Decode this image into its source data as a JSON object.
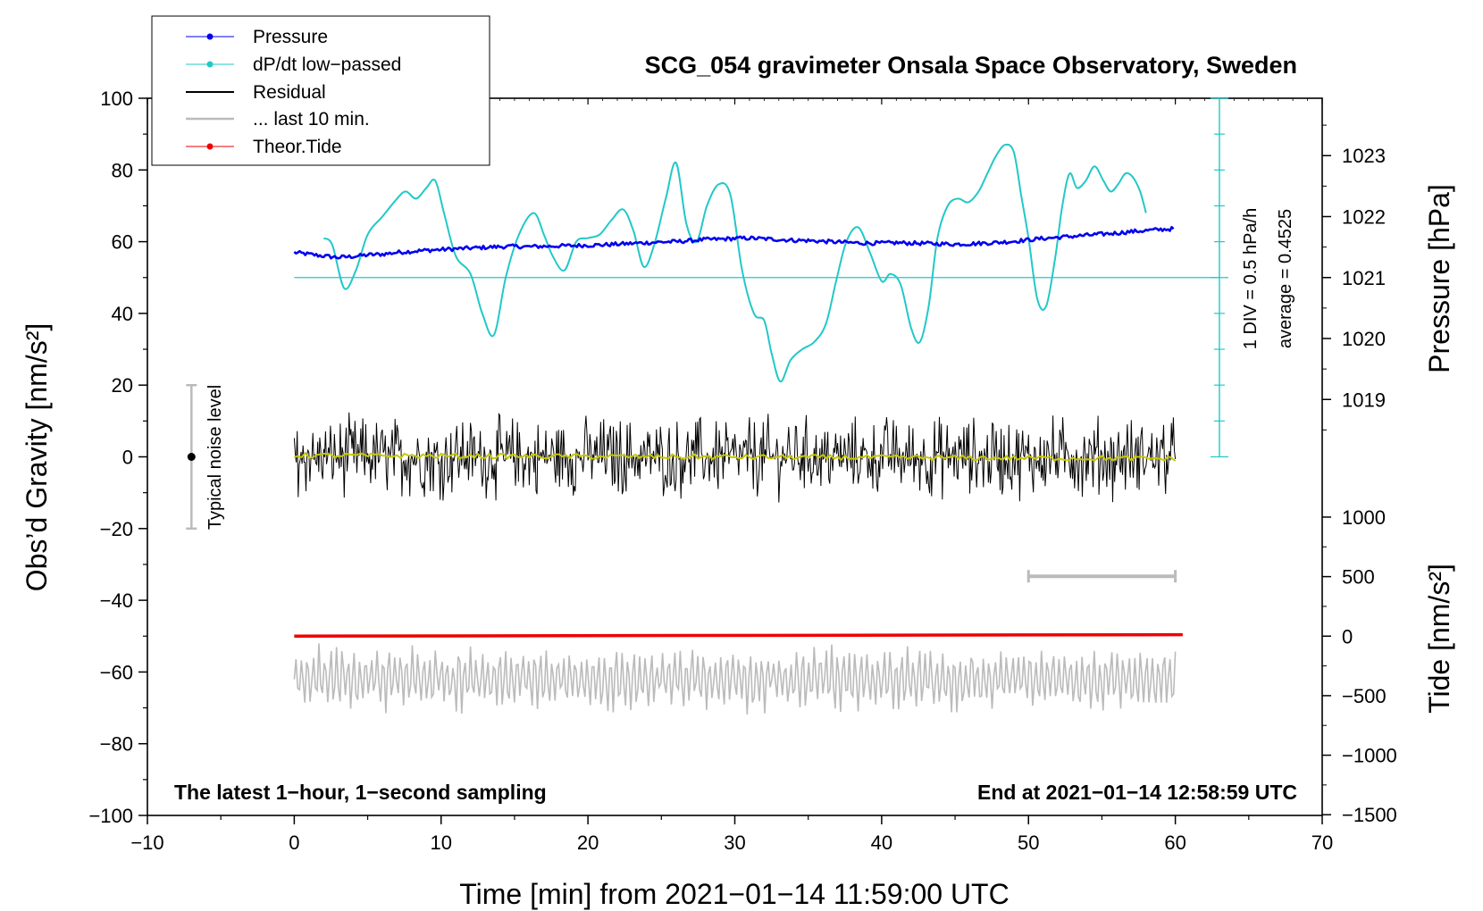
{
  "chart_data": {
    "type": "line",
    "title": "SCG_054 gravimeter Onsala Space Observatory, Sweden",
    "xlabel": "Time [min] from 2021−01−14 11:59:00 UTC",
    "ylabel_left": "Obs’d Gravity [nm/s²]",
    "ylabel_right_top": "Pressure [hPa]",
    "ylabel_right_bottom": "Tide [nm/s²]",
    "xlim": [
      -10,
      70
    ],
    "ylim": [
      -100,
      100
    ],
    "xticks": [
      "−10",
      "0",
      "10",
      "20",
      "30",
      "40",
      "50",
      "60",
      "70"
    ],
    "yticks": [
      "−100",
      "−80",
      "−60",
      "−40",
      "−20",
      "0",
      "20",
      "40",
      "60",
      "80",
      "100"
    ],
    "pressure_ticks": [
      "1019",
      "1020",
      "1021",
      "1022",
      "1023"
    ],
    "tide_ticks": [
      "−1500",
      "−1000",
      "−500",
      "0",
      "500",
      "1000"
    ],
    "legend": [
      "Pressure",
      "dP/dt low−passed",
      "Residual",
      "... last 10 min.",
      "Theor.Tide"
    ],
    "annotations": {
      "noise_label": "Typical noise level",
      "scale_div": "1 DIV = 0.5 hPa/h",
      "scale_avg": "average = 0.4525",
      "bottom_left": "The latest 1−hour, 1−second sampling",
      "bottom_right": "End at 2021−01−14 12:58:59 UTC"
    },
    "colors": {
      "pressure": "#0000ee",
      "dpdt": "#22c8c8",
      "residual": "#000000",
      "last10": "#bbbbbb",
      "tide": "#ee0000",
      "smooth": "#c8c800"
    },
    "series": [
      {
        "name": "Pressure",
        "unit": "gravity-axis units (plotted)",
        "x": [
          0,
          1,
          2,
          3,
          4,
          5,
          6,
          7,
          8,
          9,
          10,
          11,
          12,
          13,
          14,
          15,
          16,
          17,
          18,
          19,
          20,
          21,
          22,
          23,
          24,
          25,
          26,
          27,
          28,
          29,
          30,
          31,
          32,
          33,
          34,
          35,
          36,
          37,
          38,
          39,
          40,
          41,
          42,
          43,
          44,
          45,
          46,
          47,
          48,
          49,
          50,
          51,
          52,
          53,
          54,
          55,
          56,
          57,
          58,
          59,
          60
        ],
        "values": [
          57.0,
          56.5,
          56.0,
          55.6,
          55.9,
          56.3,
          56.5,
          57.0,
          57.3,
          57.6,
          57.8,
          58.0,
          58.2,
          58.4,
          58.6,
          58.7,
          58.6,
          58.7,
          58.8,
          58.9,
          59.0,
          59.1,
          59.3,
          59.5,
          59.7,
          59.9,
          60.0,
          60.3,
          60.6,
          60.7,
          60.9,
          61.0,
          60.8,
          60.6,
          60.4,
          60.3,
          60.1,
          59.9,
          59.7,
          59.6,
          59.6,
          59.7,
          59.6,
          59.5,
          59.4,
          59.3,
          59.4,
          59.6,
          59.8,
          60.1,
          60.5,
          60.9,
          61.2,
          61.5,
          61.8,
          62.1,
          62.4,
          62.8,
          63.1,
          63.4,
          63.6
        ]
      },
      {
        "name": "dP/dt low−passed",
        "unit": "gravity-axis units (plotted)",
        "x": [
          2.0,
          2.6,
          3.4,
          4.2,
          5.0,
          6.0,
          7.0,
          7.6,
          8.3,
          9.0,
          9.6,
          10.2,
          11.0,
          12.0,
          12.8,
          13.6,
          14.4,
          15.3,
          16.3,
          17.0,
          17.6,
          18.4,
          19.2,
          20.0,
          20.8,
          21.6,
          22.4,
          23.1,
          23.8,
          24.5,
          25.3,
          26.0,
          26.7,
          27.4,
          28.1,
          28.9,
          29.7,
          30.5,
          31.3,
          32.0,
          32.5,
          33.1,
          33.8,
          34.6,
          35.4,
          36.2,
          36.9,
          37.6,
          38.4,
          39.2,
          40.0,
          40.6,
          41.3,
          42.0,
          42.6,
          43.2,
          43.8,
          44.5,
          45.2,
          45.9,
          46.6,
          47.2,
          47.8,
          48.4,
          49.0,
          49.5,
          50.0,
          50.6,
          51.2,
          51.8,
          52.3,
          52.8,
          53.3,
          53.9,
          54.5,
          55.1,
          55.6,
          56.1,
          56.6,
          57.1,
          57.6,
          58.0
        ],
        "values": [
          61,
          59,
          47,
          52,
          62,
          67,
          72,
          74,
          72,
          75,
          77,
          68,
          56,
          51,
          40,
          34,
          50,
          62,
          68,
          62,
          56,
          52,
          60,
          61,
          62,
          66,
          69,
          63,
          53,
          59,
          72,
          82,
          65,
          60,
          70,
          76,
          73,
          52,
          40,
          38,
          29,
          21,
          27,
          30,
          32,
          37,
          49,
          60,
          64,
          57,
          49,
          51,
          48,
          36,
          32,
          42,
          61,
          70,
          72,
          71,
          74,
          79,
          84,
          87,
          85,
          73,
          61,
          44,
          42,
          55,
          70,
          79,
          75,
          77,
          81,
          77,
          74,
          76,
          79,
          78,
          74,
          68
        ]
      },
      {
        "name": "Residual",
        "unit": "nm/s²",
        "x": [
          0,
          60
        ],
        "values": [
          0,
          0
        ],
        "range": [
          -13,
          13
        ]
      },
      {
        "name": "... last 10 min.",
        "unit": "min",
        "x": [
          50,
          60
        ],
        "values": [
          -33.3,
          -33.3
        ]
      },
      {
        "name": "Theor.Tide",
        "unit": "nm/s²",
        "x": [
          0,
          60.5
        ],
        "values": [
          -50,
          -49.6
        ]
      }
    ],
    "noise_bar": {
      "x": -7,
      "center": 0,
      "low": -20,
      "high": 20
    },
    "dpdt_reference": {
      "value": 50,
      "x_from": 0,
      "x_to": 63
    }
  }
}
